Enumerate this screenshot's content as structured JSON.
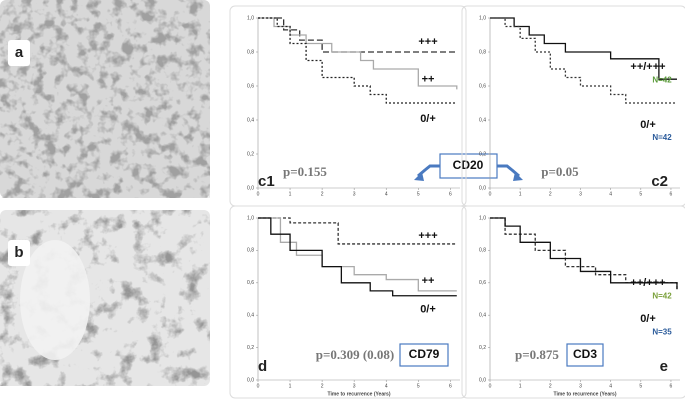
{
  "images": [
    {
      "label": "a"
    },
    {
      "label": "b"
    }
  ],
  "marker": "CD20",
  "chart_data": [
    {
      "type": "step",
      "panel": "c1",
      "p_value": "p=0.155",
      "xlim": [
        0,
        6.3
      ],
      "ylim": [
        0,
        1
      ],
      "xticks": [
        0,
        1,
        2,
        3,
        4,
        5,
        6
      ],
      "yticks": [
        {
          "value": 0,
          "label": "0,0"
        },
        {
          "value": 0.2,
          "label": "0,2"
        },
        {
          "value": 0.4,
          "label": "0,4"
        },
        {
          "value": 0.6,
          "label": "0,6"
        },
        {
          "value": 0.8,
          "label": "0,8"
        },
        {
          "value": 1,
          "label": "1,0"
        }
      ],
      "series": [
        {
          "name": "+++",
          "color": "#333333",
          "dash": "6,3",
          "x": [
            0,
            0.8,
            1.3,
            2.0,
            6.2
          ],
          "values": [
            1,
            0.93,
            0.87,
            0.8,
            0.8
          ]
        },
        {
          "name": "++",
          "color": "#aaaaaa",
          "dash": "",
          "x": [
            0,
            0.5,
            1.0,
            1.5,
            2.3,
            3.2,
            3.6,
            5.0,
            6.2
          ],
          "values": [
            1,
            0.95,
            0.9,
            0.85,
            0.8,
            0.75,
            0.7,
            0.6,
            0.58
          ]
        },
        {
          "name": "0/+",
          "color": "#222222",
          "dash": "2,2",
          "x": [
            0,
            0.6,
            1.0,
            1.5,
            2.0,
            3.0,
            3.5,
            4.0,
            6.2
          ],
          "values": [
            1,
            0.95,
            0.85,
            0.75,
            0.65,
            0.6,
            0.55,
            0.5,
            0.5
          ]
        }
      ]
    },
    {
      "type": "step",
      "panel": "c2",
      "p_value": "p=0.05",
      "xlim": [
        0,
        6.3
      ],
      "ylim": [
        0,
        1
      ],
      "xticks": [
        0,
        1,
        2,
        3,
        4,
        5,
        6
      ],
      "yticks": [
        {
          "value": 0,
          "label": "0,0"
        },
        {
          "value": 0.2,
          "label": "0,2"
        },
        {
          "value": 0.4,
          "label": "0,4"
        },
        {
          "value": 0.6,
          "label": "0,6"
        },
        {
          "value": 0.8,
          "label": "0,8"
        },
        {
          "value": 1,
          "label": "1,0"
        }
      ],
      "series": [
        {
          "name": "++/+++",
          "color": "#111111",
          "dash": "",
          "n_label": "N=42",
          "n_color": "#5a9a3a",
          "x": [
            0,
            0.8,
            1.3,
            1.8,
            2.5,
            4.0,
            5.6,
            6.2
          ],
          "values": [
            1,
            0.95,
            0.9,
            0.85,
            0.8,
            0.76,
            0.64,
            0.64
          ]
        },
        {
          "name": "0/+",
          "color": "#333333",
          "dash": "2,2",
          "n_label": "N=42",
          "n_color": "#2a5a9a",
          "x": [
            0,
            0.5,
            1.0,
            1.5,
            2.0,
            2.5,
            3.0,
            4.0,
            4.5,
            6.2
          ],
          "values": [
            1,
            0.95,
            0.88,
            0.8,
            0.7,
            0.65,
            0.6,
            0.55,
            0.5,
            0.5
          ]
        }
      ]
    },
    {
      "type": "step",
      "panel": "d",
      "p_value": "p=0.309 (0.08)",
      "marker": "CD79",
      "xlabel": "Time to recurrence (Years)",
      "xlim": [
        0,
        6.3
      ],
      "ylim": [
        0,
        1
      ],
      "xticks": [
        0,
        1,
        2,
        3,
        4,
        5,
        6
      ],
      "yticks": [
        {
          "value": 0,
          "label": "0,0"
        },
        {
          "value": 0.2,
          "label": "0,2"
        },
        {
          "value": 0.4,
          "label": "0,4"
        },
        {
          "value": 0.6,
          "label": "0,6"
        },
        {
          "value": 0.8,
          "label": "0,8"
        },
        {
          "value": 1,
          "label": "1,0"
        }
      ],
      "series": [
        {
          "name": "+++",
          "color": "#333333",
          "dash": "3,2",
          "x": [
            0,
            1.0,
            2.5,
            6.2
          ],
          "values": [
            1,
            0.97,
            0.84,
            0.84
          ]
        },
        {
          "name": "++",
          "color": "#aaaaaa",
          "dash": "",
          "x": [
            0,
            0.7,
            1.2,
            2.0,
            3.0,
            4.0,
            5.0,
            6.2
          ],
          "values": [
            1,
            0.85,
            0.77,
            0.7,
            0.65,
            0.62,
            0.55,
            0.55
          ]
        },
        {
          "name": "0/+",
          "color": "#111111",
          "dash": "",
          "x": [
            0,
            0.4,
            1.0,
            2.0,
            2.6,
            3.5,
            4.2,
            6.2
          ],
          "values": [
            1,
            0.9,
            0.8,
            0.7,
            0.6,
            0.55,
            0.52,
            0.52
          ]
        }
      ]
    },
    {
      "type": "step",
      "panel": "e",
      "p_value": "p=0.875",
      "marker": "CD3",
      "xlabel": "Time to recurrence (Years)",
      "xlim": [
        0,
        6.3
      ],
      "ylim": [
        0,
        1
      ],
      "xticks": [
        0,
        1,
        2,
        3,
        4,
        5,
        6
      ],
      "yticks": [
        {
          "value": 0,
          "label": "0,0"
        },
        {
          "value": 0.2,
          "label": "0,2"
        },
        {
          "value": 0.4,
          "label": "0,4"
        },
        {
          "value": 0.6,
          "label": "0,6"
        },
        {
          "value": 0.8,
          "label": "0,8"
        },
        {
          "value": 1,
          "label": "1,0"
        }
      ],
      "series": [
        {
          "name": "++/+++",
          "color": "#333333",
          "dash": "3,2",
          "n_label": "N=42",
          "n_color": "#7aa03a",
          "x": [
            0,
            0.5,
            1.5,
            2.5,
            3.5,
            4.5,
            6.2
          ],
          "values": [
            1,
            0.9,
            0.8,
            0.7,
            0.65,
            0.6,
            0.56
          ]
        },
        {
          "name": "0/+",
          "color": "#111111",
          "dash": "",
          "n_label": "N=35",
          "n_color": "#2a5a9a",
          "x": [
            0,
            0.5,
            1.0,
            2.0,
            3.0,
            4.0,
            6.2
          ],
          "values": [
            1,
            0.95,
            0.85,
            0.75,
            0.67,
            0.6,
            0.56
          ]
        }
      ]
    }
  ]
}
